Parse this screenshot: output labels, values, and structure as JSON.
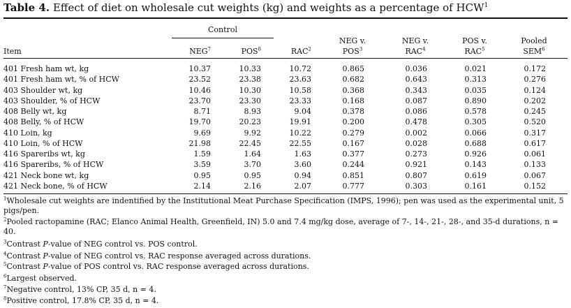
{
  "title": {
    "label": "Table 4.",
    "text": "Effect of diet on wholesale cut weights (kg) and weights as a percentage of HCW",
    "sup": "1"
  },
  "headers": {
    "group": "Control",
    "item": "Item",
    "neg": "NEG",
    "neg_sup": "7",
    "pos": "POS",
    "pos_sup": "8",
    "rac": "RAC",
    "rac_sup": "2",
    "negpos_1": "NEG v.",
    "negpos_2": "POS",
    "negpos_sup": "3",
    "negrac_1": "NEG v.",
    "negrac_2": "RAC",
    "negrac_sup": "4",
    "posrac_1": "POS v.",
    "posrac_2": "RAC",
    "posrac_sup": "5",
    "sem_1": "Pooled",
    "sem_2": "SEM",
    "sem_sup": "6"
  },
  "rows": [
    [
      "401 Fresh ham wt, kg",
      "10.37",
      "10.33",
      "10.72",
      "0.865",
      "0.036",
      "0.021",
      "0.172"
    ],
    [
      "401 Fresh ham wt, % of HCW",
      "23.52",
      "23.38",
      "23.63",
      "0.682",
      "0.643",
      "0.313",
      "0.276"
    ],
    [
      "403 Shoulder wt, kg",
      "10.46",
      "10.30",
      "10.58",
      "0.368",
      "0.343",
      "0.035",
      "0.124"
    ],
    [
      "403 Shoulder, % of HCW",
      "23.70",
      "23.30",
      "23.33",
      "0.168",
      "0.087",
      "0.890",
      "0.202"
    ],
    [
      "408 Belly wt, kg",
      "8.71",
      "8.93",
      "9.04",
      "0.378",
      "0.086",
      "0.578",
      "0.245"
    ],
    [
      "408 Belly, % of HCW",
      "19.70",
      "20.23",
      "19.91",
      "0.200",
      "0.478",
      "0.305",
      "0.520"
    ],
    [
      "410 Loin, kg",
      "9.69",
      "9.92",
      "10.22",
      "0.279",
      "0.002",
      "0.066",
      "0.317"
    ],
    [
      "410 Loin, % of HCW",
      "21.98",
      "22.45",
      "22.55",
      "0.167",
      "0.028",
      "0.688",
      "0.617"
    ],
    [
      "416 Spareribs wt, kg",
      "1.59",
      "1.64",
      "1.63",
      "0.377",
      "0.273",
      "0.926",
      "0.061"
    ],
    [
      "416 Spareribs, % of HCW",
      "3.59",
      "3.70",
      "3.60",
      "0.244",
      "0.921",
      "0.143",
      "0.133"
    ],
    [
      "421 Neck bone wt, kg",
      "0.95",
      "0.95",
      "0.94",
      "0.851",
      "0.807",
      "0.619",
      "0.067"
    ],
    [
      "421 Neck bone, % of HCW",
      "2.14",
      "2.16",
      "2.07",
      "0.777",
      "0.303",
      "0.161",
      "0.152"
    ]
  ],
  "footnotes": [
    {
      "sup": "1",
      "pre": "Wholesale cut weights are indentified by the Institutional Meat Purchase Specification (IMPS, 1996); pen was used as the experimental unit, 5 pigs/pen.",
      "ital": "",
      "post": ""
    },
    {
      "sup": "2",
      "pre": "Pooled ractopamine (RAC; Elanco Animal Health, Greenfield, IN) 5.0 and 7.4 mg/kg dose, average of 7-, 14-, 21-, 28-, and 35-d durations, n = 40.",
      "ital": "",
      "post": ""
    },
    {
      "sup": "3",
      "pre": "Contrast ",
      "ital": "P",
      "post": "-value of NEG control vs. POS control."
    },
    {
      "sup": "4",
      "pre": "Contrast ",
      "ital": "P",
      "post": "-value of NEG control vs. RAC response averaged across durations."
    },
    {
      "sup": "5",
      "pre": "Contrast ",
      "ital": "P",
      "post": "-value of POS control vs. RAC response averaged across durations."
    },
    {
      "sup": "6",
      "pre": "Largest observed.",
      "ital": "",
      "post": ""
    },
    {
      "sup": "7",
      "pre": "Negative control, 13% CP, 35 d, n = 4.",
      "ital": "",
      "post": ""
    },
    {
      "sup": "8",
      "pre": "Positive control, 17.8% CP, 35 d, n = 4.",
      "ital": "",
      "post": ""
    }
  ]
}
